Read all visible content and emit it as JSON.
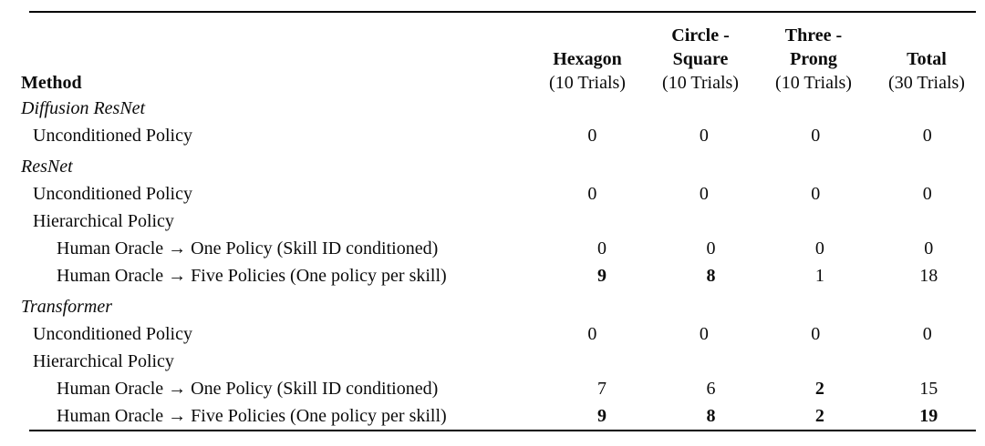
{
  "colors": {
    "background": "#ffffff",
    "text": "#0b0b0b",
    "rule": "#000000"
  },
  "table": {
    "header": {
      "method": "Method",
      "columns": [
        {
          "line1": "",
          "line2": "Hexagon",
          "sub": "(10 Trials)"
        },
        {
          "line1": "Circle -",
          "line2": "Square",
          "sub": "(10 Trials)"
        },
        {
          "line1": "Three -",
          "line2": "Prong",
          "sub": "(10 Trials)"
        },
        {
          "line1": "",
          "line2": "Total",
          "sub": "(30 Trials)"
        }
      ]
    },
    "rows": [
      {
        "label": "Diffusion ResNet",
        "type": "group",
        "indent": 0,
        "values": [
          "",
          "",
          "",
          ""
        ]
      },
      {
        "label": "Unconditioned Policy",
        "type": "item",
        "indent": 1,
        "values": [
          "0",
          "0",
          "0",
          "0"
        ]
      },
      {
        "label": "ResNet",
        "type": "group",
        "indent": 0,
        "values": [
          "",
          "",
          "",
          ""
        ]
      },
      {
        "label": "Unconditioned Policy",
        "type": "item",
        "indent": 1,
        "values": [
          "0",
          "0",
          "0",
          "0"
        ]
      },
      {
        "label": "Hierarchical Policy",
        "type": "item",
        "indent": 1,
        "values": [
          "",
          "",
          "",
          ""
        ]
      },
      {
        "label": "Human Oracle → One Policy (Skill ID conditioned)",
        "type": "item",
        "indent": 2,
        "values": [
          "0",
          "0",
          "0",
          "0"
        ]
      },
      {
        "label": "Human Oracle → Five Policies (One policy per skill)",
        "type": "item",
        "indent": 2,
        "values": [
          "9",
          "8",
          "1",
          "18"
        ]
      },
      {
        "label": "Transformer",
        "type": "group",
        "indent": 0,
        "values": [
          "",
          "",
          "",
          ""
        ]
      },
      {
        "label": "Unconditioned Policy",
        "type": "item",
        "indent": 1,
        "values": [
          "0",
          "0",
          "0",
          "0"
        ]
      },
      {
        "label": "Hierarchical Policy",
        "type": "item",
        "indent": 1,
        "values": [
          "",
          "",
          "",
          ""
        ]
      },
      {
        "label": "Human Oracle → One Policy (Skill ID conditioned)",
        "type": "item",
        "indent": 2,
        "values": [
          "7",
          "6",
          "2",
          "15"
        ]
      },
      {
        "label": "Human Oracle → Five Policies (One policy per skill)",
        "type": "item",
        "indent": 2,
        "values": [
          "9",
          "8",
          "2",
          "19"
        ]
      }
    ]
  }
}
